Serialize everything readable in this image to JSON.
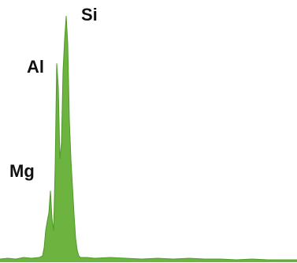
{
  "chart_data": {
    "type": "area",
    "title": "",
    "xlabel": "",
    "ylabel": "",
    "grid": false,
    "legend": "none",
    "fill_color": "#6db33f",
    "edge_color": "#4f9a2a",
    "x": [
      0,
      10,
      20,
      30,
      40,
      50,
      54,
      56,
      58,
      60,
      62,
      64,
      66,
      68,
      70,
      72,
      74,
      76,
      78,
      80,
      82,
      84,
      86,
      88,
      90,
      92,
      94,
      96,
      98,
      100,
      102,
      110,
      120,
      140,
      160,
      180,
      200,
      220,
      240,
      260,
      280,
      300,
      320,
      340,
      360,
      377
    ],
    "values": [
      4,
      5,
      4,
      6,
      5,
      6,
      8,
      18,
      40,
      52,
      62,
      90,
      55,
      40,
      120,
      250,
      220,
      130,
      150,
      240,
      280,
      310,
      275,
      180,
      130,
      95,
      60,
      30,
      15,
      8,
      6,
      6,
      5,
      6,
      5,
      4,
      5,
      4,
      5,
      4,
      4,
      3,
      4,
      3,
      3,
      3
    ],
    "ylim": [
      0,
      320
    ],
    "annotations": [
      {
        "text": "Mg",
        "x": 64
      },
      {
        "text": "Al",
        "x": 72
      },
      {
        "text": "Si",
        "x": 84
      }
    ]
  }
}
